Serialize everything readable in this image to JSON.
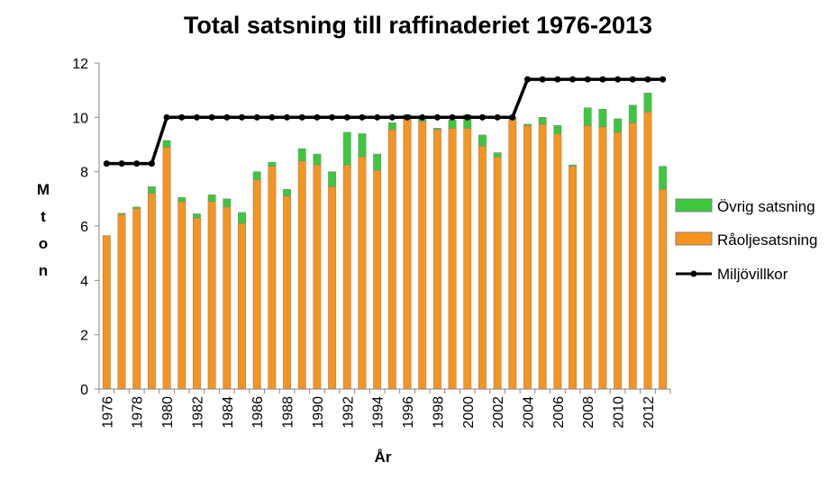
{
  "chart_data": {
    "type": "bar",
    "stacked": true,
    "title": "Total satsning till raffinaderiet 1976-2013",
    "xlabel": "År",
    "ylabel": "M t o n",
    "ylim": [
      0,
      12
    ],
    "yticks": [
      0,
      2,
      4,
      6,
      8,
      10,
      12
    ],
    "grid": false,
    "legend_position": "right",
    "categories": [
      1976,
      1977,
      1978,
      1979,
      1980,
      1981,
      1982,
      1983,
      1984,
      1985,
      1986,
      1987,
      1988,
      1989,
      1990,
      1991,
      1992,
      1993,
      1994,
      1995,
      1996,
      1997,
      1998,
      1999,
      2000,
      2001,
      2002,
      2003,
      2004,
      2005,
      2006,
      2007,
      2008,
      2009,
      2010,
      2011,
      2012,
      2013
    ],
    "x_tick_labels": [
      "1976",
      "1978",
      "1980",
      "1982",
      "1984",
      "1986",
      "1988",
      "1990",
      "1992",
      "1994",
      "1996",
      "1998",
      "2000",
      "2002",
      "2004",
      "2006",
      "2008",
      "2010",
      "2012"
    ],
    "series": [
      {
        "name": "Råoljesatsning",
        "kind": "bar",
        "color": "#F7941D",
        "values": [
          5.65,
          6.42,
          6.65,
          7.2,
          8.9,
          6.9,
          6.3,
          6.9,
          6.7,
          6.1,
          7.7,
          8.2,
          7.1,
          8.4,
          8.25,
          7.45,
          8.25,
          8.55,
          8.05,
          9.55,
          9.95,
          9.85,
          9.55,
          9.6,
          9.6,
          8.95,
          8.55,
          9.95,
          9.7,
          9.75,
          9.4,
          8.2,
          9.7,
          9.65,
          9.45,
          9.8,
          10.2,
          7.35
        ]
      },
      {
        "name": "Övrig satsning",
        "kind": "bar",
        "color": "#3CC83C",
        "values": [
          0,
          0.05,
          0.05,
          0.25,
          0.25,
          0.15,
          0.15,
          0.25,
          0.3,
          0.4,
          0.3,
          0.15,
          0.25,
          0.45,
          0.4,
          0.55,
          1.2,
          0.85,
          0.6,
          0.25,
          0.15,
          0.1,
          0.05,
          0.3,
          0.5,
          0.4,
          0.15,
          0.05,
          0.05,
          0.25,
          0.3,
          0.05,
          0.65,
          0.65,
          0.5,
          0.65,
          0.7,
          0.85
        ]
      },
      {
        "name": "Miljövillkor",
        "kind": "line",
        "color": "#000000",
        "values": [
          8.3,
          8.3,
          8.3,
          8.3,
          10,
          10,
          10,
          10,
          10,
          10,
          10,
          10,
          10,
          10,
          10,
          10,
          10,
          10,
          10,
          10,
          10,
          10,
          10,
          10,
          10,
          10,
          10,
          10,
          11.4,
          11.4,
          11.4,
          11.4,
          11.4,
          11.4,
          11.4,
          11.4,
          11.4,
          11.4
        ]
      }
    ]
  },
  "legend": {
    "items": [
      {
        "label": "Övrig satsning",
        "color": "#3CC83C",
        "kind": "bar"
      },
      {
        "label": "Råoljesatsning",
        "color": "#F7941D",
        "kind": "bar"
      },
      {
        "label": "Miljövillkor",
        "color": "#000000",
        "kind": "line"
      }
    ]
  }
}
